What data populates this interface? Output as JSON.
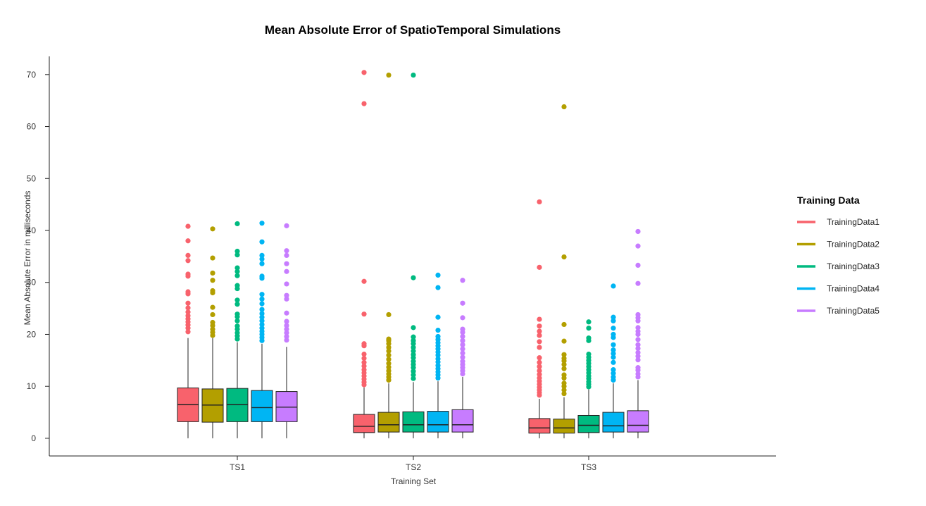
{
  "chart_data": {
    "type": "box",
    "title": "Mean Absolute Error of SpatioTemporal Simulations",
    "xlabel": "Training Set",
    "ylabel": "Mean Absolute Error in milliseconds",
    "categories": [
      "TS1",
      "TS2",
      "TS3"
    ],
    "ylim": [
      -3.4,
      73.5
    ],
    "yticks": [
      0,
      10,
      20,
      30,
      40,
      50,
      60,
      70
    ],
    "grid": false,
    "legend": {
      "title": "Training Data",
      "position": "right"
    },
    "series": [
      {
        "name": "TrainingData1",
        "color": "#F8626C",
        "boxes": [
          {
            "category": "TS1",
            "min": 0,
            "q1": 3.2,
            "median": 6.5,
            "q3": 9.7,
            "whisker_high": 19.3,
            "outliers": [
              20.5,
              21.2,
              21.8,
              22.4,
              23.0,
              23.6,
              24.3,
              25.1,
              26.0,
              27.8,
              28.2,
              31.2,
              31.6,
              34.2,
              35.2,
              38.0,
              40.8
            ]
          },
          {
            "category": "TS2",
            "min": 0,
            "q1": 1.1,
            "median": 2.3,
            "q3": 4.6,
            "whisker_high": 9.8,
            "outliers": [
              10.3,
              10.8,
              11.4,
              12.0,
              12.6,
              13.2,
              13.9,
              14.6,
              15.4,
              16.2,
              17.8,
              18.2,
              23.9,
              30.2,
              64.4,
              70.4
            ]
          },
          {
            "category": "TS3",
            "min": 0,
            "q1": 1.0,
            "median": 2.0,
            "q3": 3.8,
            "whisker_high": 7.6,
            "outliers": [
              8.3,
              8.8,
              9.3,
              9.8,
              10.4,
              11.0,
              11.6,
              12.3,
              13.0,
              13.8,
              14.6,
              15.5,
              17.5,
              18.6,
              19.8,
              20.6,
              21.6,
              22.9,
              32.9,
              45.5
            ]
          }
        ]
      },
      {
        "name": "TrainingData2",
        "color": "#B39F00",
        "boxes": [
          {
            "category": "TS1",
            "min": 0,
            "q1": 3.1,
            "median": 6.4,
            "q3": 9.5,
            "whisker_high": 19.3,
            "outliers": [
              19.8,
              20.4,
              21.0,
              21.7,
              22.3,
              23.8,
              25.2,
              28.0,
              28.4,
              30.4,
              31.8,
              34.7,
              40.3
            ]
          },
          {
            "category": "TS2",
            "min": 0,
            "q1": 1.2,
            "median": 2.6,
            "q3": 5.0,
            "whisker_high": 10.6,
            "outliers": [
              11.2,
              11.8,
              12.4,
              13.0,
              13.7,
              14.4,
              15.2,
              16.0,
              16.8,
              17.5,
              18.2,
              18.8,
              19.1,
              23.8,
              69.9
            ]
          },
          {
            "category": "TS3",
            "min": 0,
            "q1": 1.0,
            "median": 2.0,
            "q3": 3.7,
            "whisker_high": 7.9,
            "outliers": [
              8.6,
              9.3,
              10.0,
              10.6,
              11.6,
              12.2,
              13.4,
              14.2,
              14.9,
              15.4,
              16.1,
              18.7,
              21.9,
              34.9,
              63.8
            ]
          }
        ]
      },
      {
        "name": "TrainingData3",
        "color": "#00BA80",
        "boxes": [
          {
            "category": "TS1",
            "min": 0,
            "q1": 3.2,
            "median": 6.5,
            "q3": 9.6,
            "whisker_high": 18.5,
            "outliers": [
              19.1,
              19.7,
              20.3,
              21.0,
              21.6,
              22.6,
              23.4,
              23.9,
              25.8,
              26.6,
              28.8,
              29.4,
              31.3,
              32.1,
              32.8,
              35.3,
              36.0,
              41.3
            ]
          },
          {
            "category": "TS2",
            "min": 0,
            "q1": 1.2,
            "median": 2.6,
            "q3": 5.1,
            "whisker_high": 10.8,
            "outliers": [
              11.5,
              12.2,
              12.9,
              13.6,
              14.2,
              14.8,
              15.5,
              16.1,
              16.8,
              17.5,
              18.2,
              18.8,
              19.5,
              21.3,
              30.9,
              69.9
            ]
          },
          {
            "category": "TS3",
            "min": 0,
            "q1": 1.1,
            "median": 2.5,
            "q3": 4.4,
            "whisker_high": 9.4,
            "outliers": [
              9.9,
              10.4,
              10.9,
              11.5,
              12.0,
              12.6,
              13.2,
              13.8,
              14.4,
              15.0,
              15.6,
              16.2,
              18.8,
              19.3,
              21.2,
              22.4
            ]
          }
        ]
      },
      {
        "name": "TrainingData4",
        "color": "#00B5F3",
        "boxes": [
          {
            "category": "TS1",
            "min": 0,
            "q1": 3.2,
            "median": 5.9,
            "q3": 9.2,
            "whisker_high": 18.2,
            "outliers": [
              18.8,
              19.4,
              20.0,
              20.6,
              21.2,
              21.9,
              22.6,
              23.3,
              24.0,
              24.8,
              25.9,
              26.8,
              27.7,
              30.8,
              31.2,
              33.6,
              34.5,
              35.2,
              37.8,
              41.4
            ]
          },
          {
            "category": "TS2",
            "min": 0,
            "q1": 1.2,
            "median": 2.6,
            "q3": 5.2,
            "whisker_high": 11.0,
            "outliers": [
              11.6,
              12.2,
              12.8,
              13.4,
              14.0,
              14.7,
              15.3,
              16.0,
              16.6,
              17.2,
              17.8,
              18.4,
              19.0,
              19.6,
              20.8,
              23.3,
              29.0,
              31.4
            ]
          },
          {
            "category": "TS3",
            "min": 0,
            "q1": 1.2,
            "median": 2.4,
            "q3": 5.0,
            "whisker_high": 10.6,
            "outliers": [
              11.2,
              11.8,
              12.5,
              13.2,
              14.6,
              15.6,
              16.3,
              17.0,
              18.0,
              19.4,
              20.0,
              21.2,
              22.6,
              23.3,
              29.3
            ]
          }
        ]
      },
      {
        "name": "TrainingData5",
        "color": "#C77CFF",
        "boxes": [
          {
            "category": "TS1",
            "min": 0,
            "q1": 3.2,
            "median": 6.0,
            "q3": 9.0,
            "whisker_high": 17.6,
            "outliers": [
              18.9,
              19.6,
              20.3,
              21.0,
              21.7,
              22.5,
              24.1,
              26.8,
              27.5,
              29.7,
              32.1,
              33.6,
              35.2,
              36.1,
              40.9
            ]
          },
          {
            "category": "TS2",
            "min": 0,
            "q1": 1.2,
            "median": 2.6,
            "q3": 5.5,
            "whisker_high": 11.8,
            "outliers": [
              12.4,
              13.0,
              13.6,
              14.2,
              14.8,
              15.6,
              16.4,
              17.2,
              18.0,
              18.8,
              19.6,
              20.4,
              21.0,
              23.2,
              26.0,
              30.4
            ]
          },
          {
            "category": "TS3",
            "min": 0,
            "q1": 1.2,
            "median": 2.5,
            "q3": 5.3,
            "whisker_high": 11.2,
            "outliers": [
              11.8,
              12.4,
              13.1,
              13.6,
              15.1,
              15.8,
              16.5,
              17.3,
              18.0,
              19.0,
              20.0,
              20.6,
              21.3,
              22.6,
              23.2,
              23.8,
              29.8,
              33.3,
              37.0,
              39.8
            ]
          }
        ]
      }
    ]
  }
}
